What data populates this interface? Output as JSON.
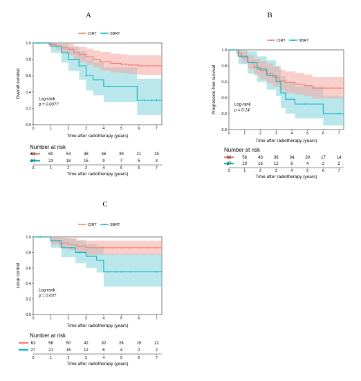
{
  "colors": {
    "cirt": "#F08076",
    "sbrt": "#17B5C2",
    "cirt_band": "#F4A8A2",
    "sbrt_band": "#7FD3DA"
  },
  "chart_data": [
    {
      "type": "line",
      "panel_label": "A",
      "legend": [
        "CIRT",
        "SBRT"
      ],
      "legend_position": "top-center",
      "xlabel": "Time after radiotherapy (years)",
      "ylabel": "Overall survival",
      "xlim": [
        0,
        7.3
      ],
      "ylim": [
        0,
        1
      ],
      "x_ticks": [
        0,
        1,
        2,
        3,
        4,
        5,
        6,
        7
      ],
      "y_ticks": [
        "0.0",
        "0.2",
        "0.4",
        "0.6",
        "0.8",
        "1.0"
      ],
      "annotation": [
        "Log-rank",
        "p = 0.0077"
      ],
      "series": [
        {
          "name": "CIRT",
          "x": [
            0,
            0.9,
            1.3,
            1.6,
            2.0,
            2.3,
            2.6,
            3.0,
            3.4,
            3.8,
            4.4,
            5.0,
            5.4,
            6.0,
            7.3
          ],
          "y": [
            1.0,
            0.98,
            0.96,
            0.94,
            0.92,
            0.88,
            0.86,
            0.83,
            0.8,
            0.77,
            0.75,
            0.74,
            0.73,
            0.72,
            0.71
          ],
          "lower": [
            1.0,
            0.95,
            0.92,
            0.88,
            0.85,
            0.8,
            0.77,
            0.73,
            0.7,
            0.66,
            0.64,
            0.63,
            0.62,
            0.61,
            0.6
          ],
          "upper": [
            1.0,
            1.0,
            1.0,
            1.0,
            0.99,
            0.96,
            0.95,
            0.93,
            0.91,
            0.89,
            0.87,
            0.86,
            0.85,
            0.85,
            0.85
          ],
          "censor_x": [
            4.6,
            5.0,
            5.3,
            5.6,
            5.9,
            6.2,
            6.5,
            6.8,
            7.1
          ]
        },
        {
          "name": "SBRT",
          "x": [
            0,
            1.0,
            1.6,
            2.0,
            2.6,
            3.0,
            3.4,
            4.0,
            5.9,
            7.3
          ],
          "y": [
            1.0,
            0.96,
            0.88,
            0.8,
            0.72,
            0.6,
            0.55,
            0.47,
            0.3,
            0.3
          ],
          "lower": [
            1.0,
            0.88,
            0.76,
            0.66,
            0.55,
            0.42,
            0.36,
            0.28,
            0.12,
            0.12
          ],
          "upper": [
            1.0,
            1.0,
            1.0,
            0.95,
            0.9,
            0.8,
            0.76,
            0.7,
            0.56,
            0.56
          ],
          "censor_x": [
            0.3,
            3.0,
            4.3,
            6.3,
            6.7,
            7.0
          ]
        }
      ],
      "risk_table": {
        "title": "Number at risk",
        "rows": [
          {
            "name": "CIRT",
            "values": [
              "62",
              "60",
              "54",
              "48",
              "46",
              "39",
              "21",
              "15"
            ]
          },
          {
            "name": "SBRT",
            "values": [
              "27",
              "23",
              "18",
              "15",
              "9",
              "7",
              "5",
              "3"
            ]
          }
        ]
      }
    },
    {
      "type": "line",
      "panel_label": "B",
      "legend": [
        "CIRT",
        "SBRT"
      ],
      "legend_position": "top-center",
      "xlabel": "Time after radiotherapy (years)",
      "ylabel": "Progression-free survival",
      "xlim": [
        0,
        7.3
      ],
      "ylim": [
        0,
        1
      ],
      "x_ticks": [
        0,
        1,
        2,
        3,
        4,
        5,
        6,
        7
      ],
      "y_ticks": [
        "0.0",
        "0.2",
        "0.4",
        "0.6",
        "0.8",
        "1.0"
      ],
      "annotation": [
        "Log-rank",
        "p = 0.14"
      ],
      "series": [
        {
          "name": "CIRT",
          "x": [
            0,
            0.5,
            0.8,
            1.2,
            1.6,
            2.0,
            2.4,
            2.8,
            3.2,
            3.6,
            4.2,
            4.8,
            5.3,
            7.3
          ],
          "y": [
            1.0,
            0.96,
            0.9,
            0.84,
            0.78,
            0.74,
            0.7,
            0.66,
            0.61,
            0.59,
            0.57,
            0.55,
            0.52,
            0.51
          ],
          "lower": [
            1.0,
            0.92,
            0.84,
            0.76,
            0.68,
            0.63,
            0.58,
            0.54,
            0.49,
            0.46,
            0.44,
            0.42,
            0.39,
            0.38
          ],
          "upper": [
            1.0,
            1.0,
            0.98,
            0.93,
            0.89,
            0.86,
            0.83,
            0.79,
            0.75,
            0.73,
            0.71,
            0.69,
            0.66,
            0.65
          ],
          "censor_x": [
            3.9,
            4.4,
            4.9,
            5.4,
            5.8,
            6.2,
            6.6,
            7.0
          ]
        },
        {
          "name": "SBRT",
          "x": [
            0,
            0.6,
            1.2,
            1.8,
            2.4,
            3.0,
            3.3,
            3.6,
            4.2,
            6.0,
            7.3
          ],
          "y": [
            1.0,
            0.92,
            0.84,
            0.76,
            0.68,
            0.6,
            0.46,
            0.38,
            0.32,
            0.2,
            0.2
          ],
          "lower": [
            1.0,
            0.82,
            0.7,
            0.6,
            0.5,
            0.42,
            0.27,
            0.2,
            0.14,
            0.05,
            0.05
          ],
          "upper": [
            1.0,
            1.0,
            0.98,
            0.92,
            0.87,
            0.8,
            0.67,
            0.6,
            0.54,
            0.42,
            0.42
          ],
          "censor_x": [
            0.2,
            1.5,
            2.6,
            4.8,
            7.0
          ]
        }
      ],
      "risk_table": {
        "title": "Number at risk",
        "rows": [
          {
            "name": "CIRT",
            "values": [
              "62",
              "56",
              "43",
              "36",
              "34",
              "29",
              "17",
              "14"
            ]
          },
          {
            "name": "SBRT",
            "values": [
              "27",
              "20",
              "16",
              "12",
              "6",
              "4",
              "2",
              "2"
            ]
          }
        ]
      }
    },
    {
      "type": "line",
      "panel_label": "C",
      "legend": [
        "CIRT",
        "SBRT"
      ],
      "legend_position": "top-center",
      "xlabel": "Time after radiotherapy (years)",
      "ylabel": "Local control",
      "xlim": [
        0,
        7.3
      ],
      "ylim": [
        0,
        1
      ],
      "x_ticks": [
        0,
        1,
        2,
        3,
        4,
        5,
        6,
        7
      ],
      "y_ticks": [
        "0.0",
        "0.2",
        "0.4",
        "0.6",
        "0.8",
        "1.0"
      ],
      "annotation": [
        "Log-rank",
        "p = 0.037"
      ],
      "series": [
        {
          "name": "CIRT",
          "x": [
            0,
            1.0,
            1.5,
            2.0,
            2.5,
            3.0,
            7.3
          ],
          "y": [
            1.0,
            0.95,
            0.92,
            0.9,
            0.88,
            0.86,
            0.86
          ],
          "lower": [
            1.0,
            0.9,
            0.86,
            0.83,
            0.8,
            0.77,
            0.76
          ],
          "upper": [
            1.0,
            1.0,
            1.0,
            0.98,
            0.96,
            0.95,
            0.95
          ],
          "censor_x": [
            3.5,
            4.0,
            4.5,
            5.0,
            5.5,
            6.0,
            6.5,
            7.0
          ]
        },
        {
          "name": "SBRT",
          "x": [
            0,
            1.0,
            1.6,
            2.4,
            3.0,
            3.6,
            4.0,
            7.3
          ],
          "y": [
            1.0,
            0.95,
            0.86,
            0.8,
            0.75,
            0.7,
            0.55,
            0.55
          ],
          "lower": [
            1.0,
            0.86,
            0.74,
            0.66,
            0.6,
            0.54,
            0.36,
            0.36
          ],
          "upper": [
            1.0,
            1.0,
            0.98,
            0.95,
            0.91,
            0.88,
            0.78,
            0.78
          ],
          "censor_x": [
            0.4,
            2.2,
            4.3,
            4.7,
            5.0,
            5.5,
            7.0
          ]
        }
      ],
      "risk_table": {
        "title": "Number at risk",
        "rows": [
          {
            "name": "CIRT",
            "values": [
              "62",
              "58",
              "50",
              "42",
              "32",
              "26",
              "15",
              "12"
            ]
          },
          {
            "name": "SBRT",
            "values": [
              "27",
              "21",
              "15",
              "12",
              "6",
              "4",
              "2",
              "2"
            ]
          }
        ]
      }
    }
  ]
}
